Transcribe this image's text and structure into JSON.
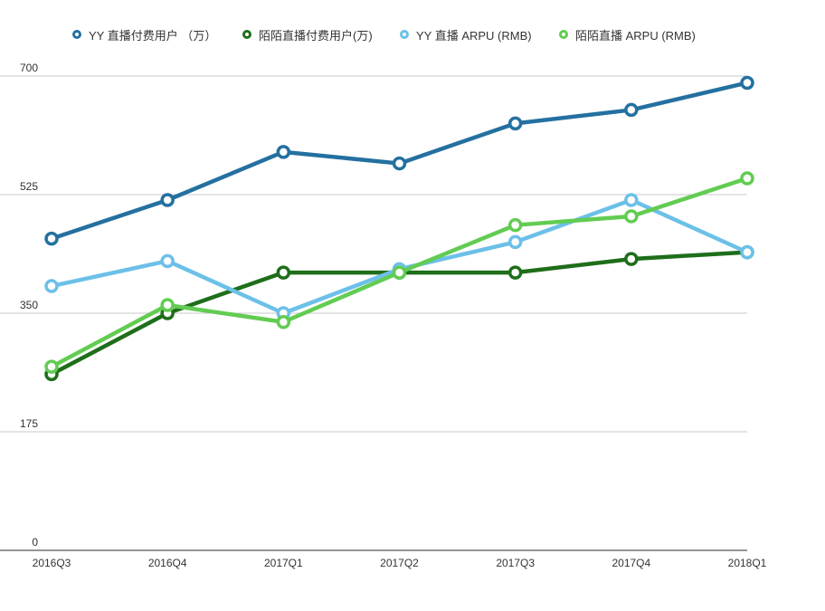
{
  "chart_data": {
    "type": "line",
    "title": "",
    "xlabel": "",
    "ylabel": "",
    "categories": [
      "2016Q3",
      "2016Q4",
      "2017Q1",
      "2017Q2",
      "2017Q3",
      "2017Q4",
      "2018Q1"
    ],
    "ylim": [
      0,
      700
    ],
    "yticks": [
      "0",
      "175",
      "350",
      "525",
      "700"
    ],
    "grid": true,
    "legend_position": "top",
    "series": [
      {
        "name": "YY 直播付费用户 （万）",
        "color": "#2470a0",
        "values": [
          460,
          517,
          588,
          571,
          630,
          650,
          690
        ]
      },
      {
        "name": "陌陌直播付费用户(万)",
        "color": "#1e6e1a",
        "values": [
          260,
          350,
          410,
          410,
          410,
          430,
          440
        ]
      },
      {
        "name": "YY 直播 ARPU (RMB)",
        "color": "#6cc0e8",
        "values": [
          390,
          427,
          350,
          415,
          455,
          517,
          440
        ]
      },
      {
        "name": "陌陌直播 ARPU (RMB)",
        "color": "#62cc52",
        "values": [
          271,
          362,
          337,
          410,
          480,
          493,
          549
        ]
      }
    ]
  }
}
